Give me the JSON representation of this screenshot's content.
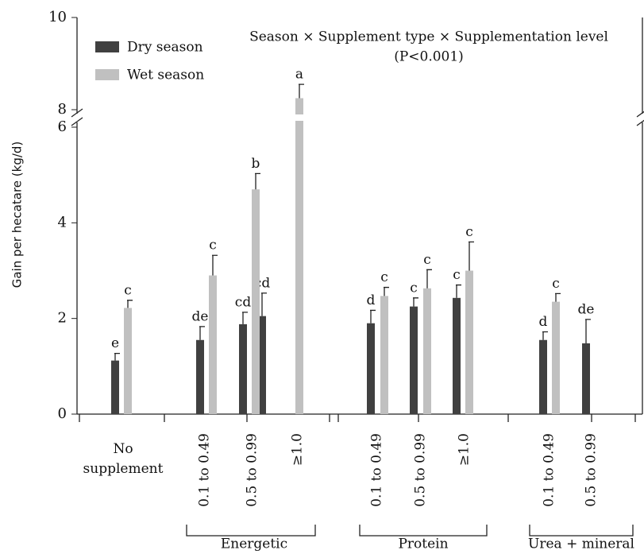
{
  "chart_data": {
    "type": "bar",
    "y_label": "Gain per hecatare (kg/d)",
    "annotation": [
      "Season × Supplement type × Supplementation level",
      "(P<0.001)"
    ],
    "categories": [
      "No supplement",
      "0.1 to 0.49",
      "0.5 to 0.99",
      "≥1.0",
      "0.1 to 0.49",
      "0.5 to 0.99",
      "≥1.0",
      "0.1 to 0.49",
      "0.5 to 0.99"
    ],
    "groups": [
      "Energetic",
      "Protein",
      "Urea + mineral"
    ],
    "series": [
      {
        "name": "Dry season",
        "color": "#404040",
        "values": [
          1.12,
          1.55,
          1.88,
          2.05,
          1.9,
          2.25,
          2.43,
          1.55,
          1.48
        ],
        "errors": [
          0.15,
          0.28,
          0.25,
          0.48,
          0.27,
          0.18,
          0.27,
          0.17,
          0.5
        ],
        "letters": [
          "e",
          "de",
          "cd",
          "cd",
          "d",
          "c",
          "c",
          "d",
          "de"
        ]
      },
      {
        "name": "Wet season",
        "color": "#c0c0c0",
        "values": [
          2.22,
          2.9,
          4.7,
          8.25,
          2.47,
          2.63,
          3.0,
          2.35,
          null
        ],
        "errors": [
          0.16,
          0.42,
          0.33,
          0.3,
          0.18,
          0.39,
          0.6,
          0.17,
          null
        ],
        "letters": [
          "c",
          "c",
          "b",
          "a",
          "c",
          "c",
          "c",
          "c",
          null
        ]
      }
    ],
    "ylim": [
      0,
      10
    ],
    "yticks": [
      0,
      2,
      4,
      6,
      8,
      10
    ],
    "y_break": [
      6,
      8
    ],
    "legend": "upper left"
  }
}
